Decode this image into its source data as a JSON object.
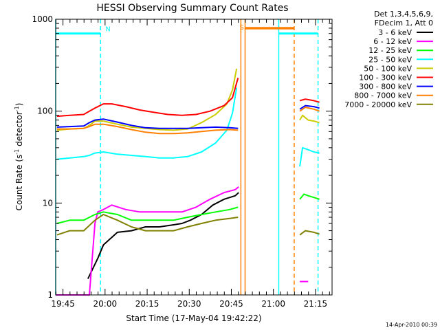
{
  "chart_data": {
    "type": "line",
    "title": "HESSI Observing Summary Count Rates",
    "xlabel": "Start Time (17-May-04 19:42:22)",
    "ylabel": "Count Rate (s",
    "ylabel_sup": "-1",
    "ylabel_mid": " detector",
    "ylabel_tail": ")",
    "y_scale": "log",
    "ylim": [
      1,
      1000
    ],
    "x_units": "minutes since 19:42:22",
    "xlim": [
      0,
      98.5
    ],
    "x_ticks": [
      {
        "t": 2.6,
        "label": "19:45"
      },
      {
        "t": 17.6,
        "label": "20:00"
      },
      {
        "t": 32.6,
        "label": "20:15"
      },
      {
        "t": 47.6,
        "label": "20:30"
      },
      {
        "t": 62.6,
        "label": "20:45"
      },
      {
        "t": 77.6,
        "label": "21:00"
      },
      {
        "t": 92.6,
        "label": "21:15"
      }
    ],
    "y_ticks": [
      {
        "v": 1,
        "label": "1"
      },
      {
        "v": 10,
        "label": "10"
      },
      {
        "v": 100,
        "label": "100"
      },
      {
        "v": 1000,
        "label": "1000"
      }
    ],
    "legend_header": [
      "Det 1,3,4,5,6,9,",
      "FDecim 1, Att 0"
    ],
    "series": [
      {
        "name": "3 - 6 keV",
        "color": "#000000",
        "segments": [
          [
            [
              11.5,
              1.5
            ],
            [
              15,
              2.5
            ],
            [
              17,
              3.5
            ],
            [
              22,
              4.8
            ],
            [
              27,
              5
            ],
            [
              32,
              5.5
            ],
            [
              37,
              5.5
            ],
            [
              42,
              5.8
            ],
            [
              45,
              6
            ],
            [
              48,
              6.5
            ],
            [
              52,
              7.5
            ],
            [
              56,
              9.5
            ],
            [
              60,
              11
            ],
            [
              64,
              12
            ],
            [
              65.2,
              13
            ]
          ]
        ]
      },
      {
        "name": "6 - 12 keV",
        "color": "#ff00ff",
        "segments": [
          [
            [
              0,
              1
            ],
            [
              9,
              1
            ],
            [
              12,
              1
            ],
            [
              14,
              6
            ],
            [
              15,
              8
            ],
            [
              17,
              8.5
            ],
            [
              20,
              9.5
            ],
            [
              25,
              8.5
            ],
            [
              30,
              8
            ],
            [
              35,
              8
            ],
            [
              40,
              8
            ],
            [
              45,
              8
            ],
            [
              50,
              9
            ],
            [
              55,
              11
            ],
            [
              60,
              13
            ],
            [
              64,
              14
            ],
            [
              65.2,
              15
            ]
          ],
          [
            [
              87,
              1.4
            ],
            [
              90,
              1.4
            ]
          ]
        ]
      },
      {
        "name": "12 - 25 keV",
        "color": "#00ff00",
        "segments": [
          [
            [
              0.5,
              6
            ],
            [
              5,
              6.5
            ],
            [
              10,
              6.5
            ],
            [
              14,
              7.5
            ],
            [
              17,
              8
            ],
            [
              22,
              7.5
            ],
            [
              27,
              6.5
            ],
            [
              32,
              6.5
            ],
            [
              37,
              6.5
            ],
            [
              42,
              6.5
            ],
            [
              47,
              7
            ],
            [
              52,
              7.5
            ],
            [
              57,
              8
            ],
            [
              62,
              8.5
            ],
            [
              65,
              9
            ]
          ],
          [
            [
              87,
              11
            ],
            [
              88.5,
              12.5
            ],
            [
              90,
              12
            ],
            [
              92,
              11.5
            ],
            [
              94,
              11
            ]
          ]
        ]
      },
      {
        "name": "25 - 50 keV",
        "color": "#00ffff",
        "segments": [
          [
            [
              0.5,
              30
            ],
            [
              10,
              32
            ],
            [
              12,
              33
            ],
            [
              14,
              35
            ],
            [
              17,
              36
            ],
            [
              22,
              34
            ],
            [
              27,
              33
            ],
            [
              32,
              32
            ],
            [
              37,
              31
            ],
            [
              42,
              31
            ],
            [
              47,
              32
            ],
            [
              52,
              36
            ],
            [
              57,
              45
            ],
            [
              61,
              62
            ],
            [
              63,
              95
            ],
            [
              64.5,
              180
            ]
          ],
          [
            [
              87,
              25
            ],
            [
              88,
              40
            ],
            [
              90,
              38
            ],
            [
              92,
              36
            ],
            [
              94,
              35
            ]
          ]
        ]
      },
      {
        "name": "50 - 100 keV",
        "color": "#cccc00",
        "segments": [
          [
            [
              0.5,
              62
            ],
            [
              5,
              64
            ],
            [
              10,
              65
            ],
            [
              12,
              70
            ],
            [
              14,
              78
            ],
            [
              17,
              78
            ],
            [
              22,
              72
            ],
            [
              27,
              67
            ],
            [
              32,
              65
            ],
            [
              37,
              63
            ],
            [
              42,
              62
            ],
            [
              47,
              64
            ],
            [
              52,
              75
            ],
            [
              57,
              92
            ],
            [
              61,
              120
            ],
            [
              63,
              170
            ],
            [
              64.5,
              290
            ]
          ],
          [
            [
              87,
              80
            ],
            [
              88,
              90
            ],
            [
              90,
              80
            ],
            [
              92,
              78
            ],
            [
              94,
              75
            ]
          ]
        ]
      },
      {
        "name": "100 - 300 keV",
        "color": "#ff0000",
        "segments": [
          [
            [
              0.5,
              88
            ],
            [
              5,
              90
            ],
            [
              10,
              92
            ],
            [
              12,
              100
            ],
            [
              14,
              108
            ],
            [
              17,
              120
            ],
            [
              20,
              120
            ],
            [
              25,
              112
            ],
            [
              30,
              103
            ],
            [
              35,
              97
            ],
            [
              40,
              92
            ],
            [
              45,
              90
            ],
            [
              50,
              92
            ],
            [
              55,
              100
            ],
            [
              60,
              115
            ],
            [
              63,
              140
            ],
            [
              65,
              230
            ]
          ],
          [
            [
              87,
              130
            ],
            [
              89,
              135
            ],
            [
              92,
              130
            ],
            [
              94,
              125
            ]
          ]
        ]
      },
      {
        "name": "300 - 800 keV",
        "color": "#0000ff",
        "segments": [
          [
            [
              0.5,
              67
            ],
            [
              5,
              68
            ],
            [
              10,
              69
            ],
            [
              12,
              75
            ],
            [
              14,
              80
            ],
            [
              17,
              82
            ],
            [
              22,
              76
            ],
            [
              27,
              70
            ],
            [
              32,
              66
            ],
            [
              37,
              65
            ],
            [
              42,
              65
            ],
            [
              47,
              65
            ],
            [
              52,
              66
            ],
            [
              57,
              67
            ],
            [
              62,
              66
            ],
            [
              65,
              65
            ]
          ],
          [
            [
              87,
              105
            ],
            [
              89,
              115
            ],
            [
              92,
              112
            ],
            [
              94,
              108
            ]
          ]
        ]
      },
      {
        "name": "800 - 7000 keV",
        "color": "#ff8000",
        "segments": [
          [
            [
              0.5,
              64
            ],
            [
              5,
              64
            ],
            [
              10,
              65
            ],
            [
              12,
              68
            ],
            [
              14,
              72
            ],
            [
              17,
              72
            ],
            [
              22,
              68
            ],
            [
              27,
              63
            ],
            [
              32,
              59
            ],
            [
              37,
              57
            ],
            [
              42,
              57
            ],
            [
              47,
              58
            ],
            [
              52,
              60
            ],
            [
              57,
              62
            ],
            [
              62,
              63
            ],
            [
              65,
              62
            ]
          ],
          [
            [
              87,
              100
            ],
            [
              89,
              110
            ],
            [
              92,
              105
            ],
            [
              94,
              100
            ]
          ]
        ]
      },
      {
        "name": "7000 - 20000 keV",
        "color": "#808000",
        "segments": [
          [
            [
              0.5,
              4.5
            ],
            [
              5,
              5
            ],
            [
              10,
              5
            ],
            [
              14,
              6.5
            ],
            [
              17,
              7.5
            ],
            [
              22,
              6.5
            ],
            [
              27,
              5.5
            ],
            [
              32,
              5
            ],
            [
              37,
              5
            ],
            [
              42,
              5
            ],
            [
              47,
              5.5
            ],
            [
              52,
              6
            ],
            [
              57,
              6.5
            ],
            [
              62,
              6.8
            ],
            [
              65,
              7
            ]
          ],
          [
            [
              87,
              4.5
            ],
            [
              89,
              5
            ],
            [
              92,
              4.8
            ],
            [
              94,
              4.6
            ]
          ]
        ]
      }
    ],
    "annotations": {
      "night_label": "N",
      "saa_label": "S",
      "night_bars": [
        {
          "start": 0,
          "end": 16,
          "y": 700,
          "color": "#00ffff"
        },
        {
          "start": 79.5,
          "end": 93.5,
          "y": 700,
          "color": "#00ffff"
        }
      ],
      "saa_bars": [
        {
          "start": 67.5,
          "end": 85,
          "y": 800,
          "color": "#ff8000"
        }
      ],
      "vlines": [
        {
          "t": 0,
          "color": "#00ffff",
          "style": "solid"
        },
        {
          "t": 16,
          "color": "#00ffff",
          "style": "dashed"
        },
        {
          "t": 79.5,
          "color": "#00ffff",
          "style": "solid"
        },
        {
          "t": 93.5,
          "color": "#00ffff",
          "style": "dashed"
        },
        {
          "t": 66,
          "color": "#ff8000",
          "style": "solid"
        },
        {
          "t": 67.5,
          "color": "#ff8000",
          "style": "solid"
        },
        {
          "t": 85,
          "color": "#ff8000",
          "style": "dashed"
        }
      ]
    },
    "timestamp": "14-Apr-2010 00:39"
  }
}
